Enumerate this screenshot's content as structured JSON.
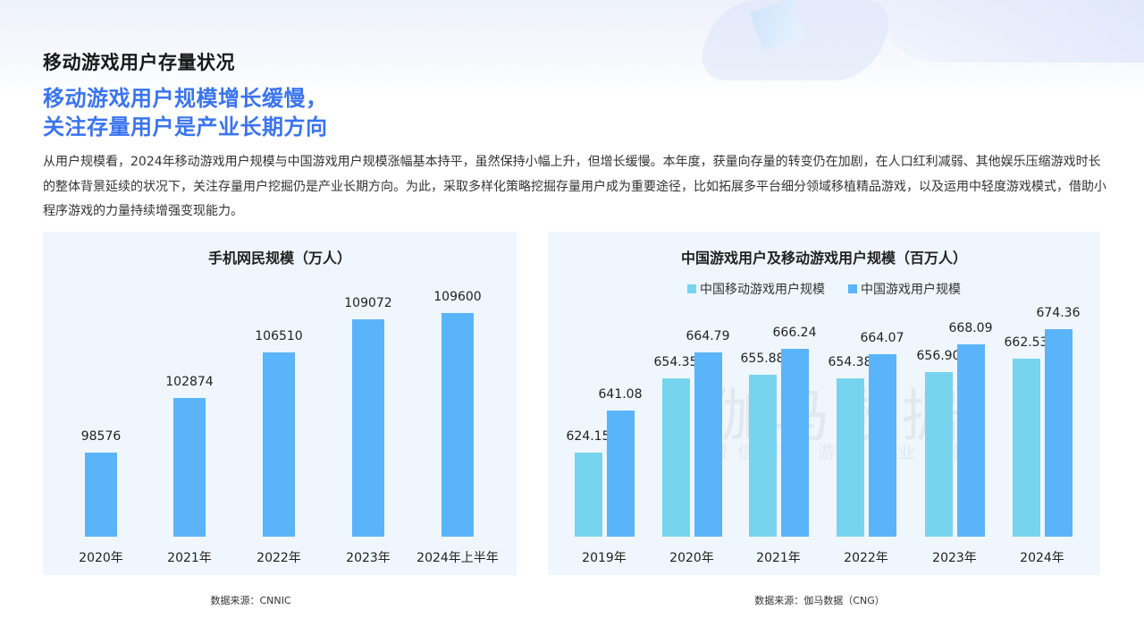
{
  "header": {
    "page_title": "移动游戏用户存量状况",
    "headline_line1": "移动游戏用户规模增长缓慢，",
    "headline_line2": "关注存量用户是产业长期方向",
    "body": "从用户规模看，2024年移动游戏用户规模与中国游戏用户规模涨幅基本持平，虽然保持小幅上升，但增长缓慢。本年度，获量向存量的转变仍在加剧，在人口红利减弱、其他娱乐压缩游戏时长的整体背景延续的状况下，关注存量用户挖掘仍是产业长期方向。为此，采取多样化策略挖掘存量用户成为重要途径，比如拓展多平台细分领域移植精品游戏，以及运用中轻度游戏模式，借助小程序游戏的力量持续增强变现能力。"
  },
  "colors": {
    "headline": "#3a74f0",
    "bar_primary": "#5ab4fa",
    "bar_secondary": "#76d4ef",
    "panel_bg": "#eff6fd"
  },
  "watermark": {
    "main": "伽马数据",
    "sub": "微信号：游戏产业报告"
  },
  "chart_data": [
    {
      "type": "bar",
      "title": "手机网民规模（万人）",
      "categories": [
        "2020年",
        "2021年",
        "2022年",
        "2023年",
        "2024年上半年"
      ],
      "values": [
        98576,
        102874,
        106510,
        109072,
        109600
      ],
      "value_labels": [
        "98576",
        "102874",
        "106510",
        "109072",
        "109600"
      ],
      "xlabel": "",
      "ylabel": "",
      "grid": false,
      "source": "数据来源：CNNIC"
    },
    {
      "type": "bar",
      "title": "中国游戏用户及移动游戏用户规模（百万人）",
      "categories": [
        "2019年",
        "2020年",
        "2021年",
        "2022年",
        "2023年",
        "2024年"
      ],
      "series": [
        {
          "name": "中国移动游戏用户规模",
          "values": [
            624.15,
            654.35,
            655.88,
            654.38,
            656.9,
            662.53
          ],
          "labels": [
            "624.15",
            "654.35",
            "655.88",
            "654.38",
            "656.90",
            "662.53"
          ]
        },
        {
          "name": "中国游戏用户规模",
          "values": [
            641.08,
            664.79,
            666.24,
            664.07,
            668.09,
            674.36
          ],
          "labels": [
            "641.08",
            "664.79",
            "666.24",
            "664.07",
            "668.09",
            "674.36"
          ]
        }
      ],
      "legend_position": "top",
      "xlabel": "",
      "ylabel": "",
      "grid": false,
      "source": "数据来源：伽马数据（CNG）"
    }
  ]
}
